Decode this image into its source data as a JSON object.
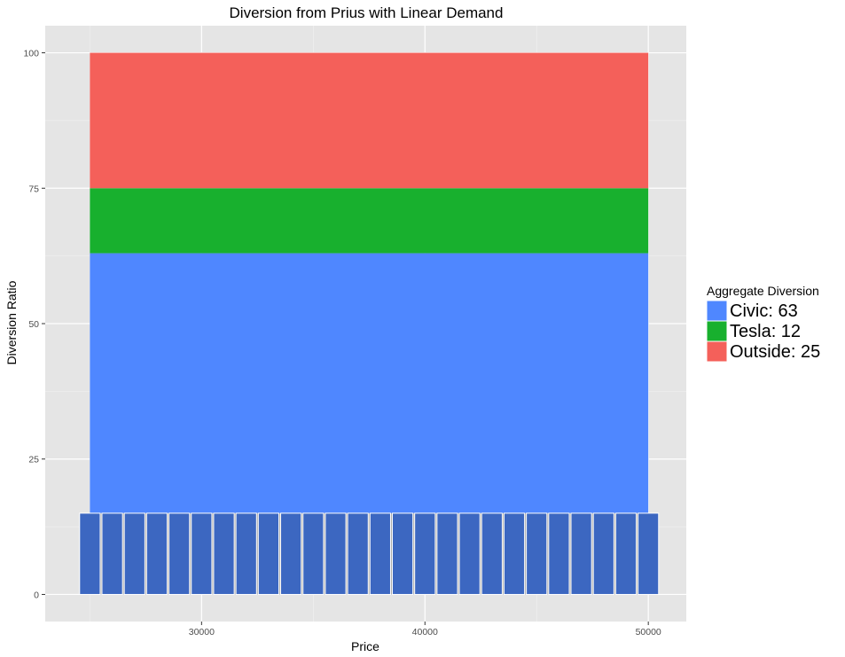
{
  "chart_data": {
    "type": "bar",
    "title": "Diversion from Prius with Linear Demand",
    "xlabel": "Price",
    "ylabel": "Diversion Ratio",
    "xlim": [
      23000,
      51700
    ],
    "ylim": [
      -5,
      105
    ],
    "xticks": [
      30000,
      40000,
      50000
    ],
    "xtick_labels": [
      "30000",
      "40000",
      "50000"
    ],
    "yticks": [
      0,
      25,
      50,
      75,
      100
    ],
    "ytick_labels": [
      "0",
      "25",
      "50",
      "75",
      "100"
    ],
    "grid": true,
    "background_color": "#e5e5e5",
    "stacked_area": {
      "x_range": [
        25000,
        50000
      ],
      "series": [
        {
          "name": "Civic",
          "value": 63,
          "color": "#4f87ff"
        },
        {
          "name": "Tesla",
          "value": 12,
          "color": "#18b02e"
        },
        {
          "name": "Outside",
          "value": 25,
          "color": "#f4605a"
        }
      ]
    },
    "price_bars": {
      "band": [
        24600,
        50400
      ],
      "band_color": "#aaaaaa",
      "bar_color": "#3c67c1",
      "bar_outline": "#ffffff",
      "height": 15,
      "centers": [
        25000,
        26000,
        27000,
        28000,
        29000,
        30000,
        31000,
        32000,
        33000,
        34000,
        35000,
        36000,
        37000,
        38000,
        39000,
        40000,
        41000,
        42000,
        43000,
        44000,
        45000,
        46000,
        47000,
        48000,
        49000,
        50000
      ]
    },
    "legend": {
      "title": "Aggregate Diversion",
      "position": "right",
      "entries": [
        {
          "label": "Civic:  63",
          "color": "#4f87ff"
        },
        {
          "label": "Tesla:  12",
          "color": "#18b02e"
        },
        {
          "label": "Outside:  25",
          "color": "#f4605a"
        }
      ]
    }
  }
}
